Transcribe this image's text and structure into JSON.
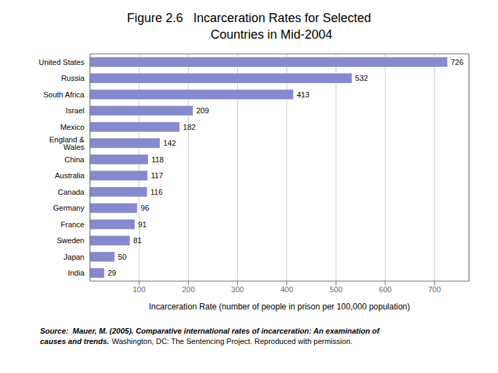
{
  "chart_data": {
    "type": "bar",
    "title": "Figure 2.6   Incarceration Rates for Selected\n             Countries in Mid-2004",
    "orientation": "horizontal",
    "categories": [
      "United States",
      "Russia",
      "South Africa",
      "Israel",
      "Mexico",
      "England & Wales",
      "China",
      "Australia",
      "Canada",
      "Germany",
      "France",
      "Sweden",
      "Japan",
      "India"
    ],
    "values": [
      726,
      532,
      413,
      209,
      182,
      142,
      118,
      117,
      116,
      96,
      91,
      81,
      50,
      29
    ],
    "color": "#8888cc",
    "x_label": "Incarceration Rate (number of people in prison per 100,000 population)",
    "xlim": [
      0,
      770
    ],
    "xticks": [
      100,
      200,
      300,
      400,
      500,
      600,
      700
    ],
    "grid": true,
    "data_labels": true,
    "annotations": [
      "Source:  Mauer, M. (2005). Comparative international rates of incarceration: An examination of\ncauses and trends.",
      "Washington, DC: The Sentencing Project. Reproduced with permission."
    ]
  }
}
